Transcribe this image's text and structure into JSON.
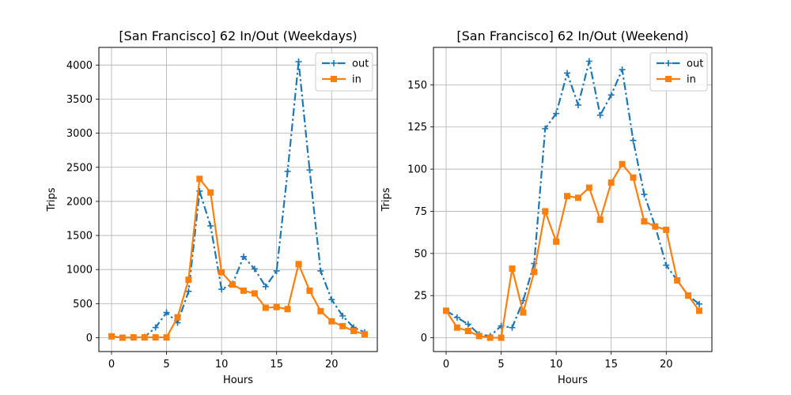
{
  "chart_data": [
    {
      "type": "line",
      "title": "[San Francisco] 62 In/Out (Weekdays)",
      "xlabel": "Hours",
      "ylabel": "Trips",
      "xlim": [
        -1.15,
        24.15
      ],
      "ylim": [
        -202.8,
        4258.8
      ],
      "xticks": [
        0,
        5,
        10,
        15,
        20
      ],
      "yticks": [
        0,
        500,
        1000,
        1500,
        2000,
        2500,
        3000,
        3500,
        4000
      ],
      "grid": true,
      "legend_position": "top-right",
      "x": [
        0,
        1,
        2,
        3,
        4,
        5,
        6,
        7,
        8,
        9,
        10,
        11,
        12,
        13,
        14,
        15,
        16,
        17,
        18,
        19,
        20,
        21,
        22,
        23
      ],
      "series": [
        {
          "name": "out",
          "color": "#1f77b4",
          "marker": "plus",
          "linestyle": "dashdot",
          "values": [
            20,
            0,
            5,
            10,
            150,
            370,
            220,
            680,
            2150,
            1640,
            710,
            790,
            1190,
            1010,
            750,
            980,
            2440,
            4050,
            2460,
            980,
            560,
            320,
            150,
            80
          ]
        },
        {
          "name": "in",
          "color": "#ff7f0e",
          "marker": "square",
          "linestyle": "solid",
          "values": [
            20,
            0,
            5,
            5,
            5,
            5,
            300,
            850,
            2330,
            2130,
            960,
            780,
            690,
            650,
            440,
            450,
            420,
            1080,
            690,
            390,
            240,
            170,
            100,
            50
          ]
        }
      ]
    },
    {
      "type": "line",
      "title": "[San Francisco] 62 In/Out (Weekend)",
      "xlabel": "Hours",
      "ylabel": "Trips",
      "xlim": [
        -1.15,
        24.15
      ],
      "ylim": [
        -8.2,
        172.2
      ],
      "xticks": [
        0,
        5,
        10,
        15,
        20
      ],
      "yticks": [
        0,
        25,
        50,
        75,
        100,
        125,
        150
      ],
      "grid": true,
      "legend_position": "top-right",
      "x": [
        0,
        1,
        2,
        3,
        4,
        5,
        6,
        7,
        8,
        9,
        10,
        11,
        12,
        13,
        14,
        15,
        16,
        17,
        18,
        19,
        20,
        21,
        22,
        23
      ],
      "series": [
        {
          "name": "out",
          "color": "#1f77b4",
          "marker": "plus",
          "linestyle": "dashdot",
          "values": [
            16,
            12,
            8,
            2,
            1,
            7,
            6,
            22,
            44,
            124,
            133,
            157,
            138,
            164,
            132,
            144,
            159,
            117,
            85,
            66,
            43,
            34,
            25,
            20
          ]
        },
        {
          "name": "in",
          "color": "#ff7f0e",
          "marker": "square",
          "linestyle": "solid",
          "values": [
            16,
            6,
            4,
            1,
            0,
            0,
            41,
            15,
            39,
            75,
            57,
            84,
            83,
            89,
            70,
            92,
            103,
            95,
            69,
            66,
            64,
            34,
            25,
            16
          ]
        }
      ]
    }
  ]
}
